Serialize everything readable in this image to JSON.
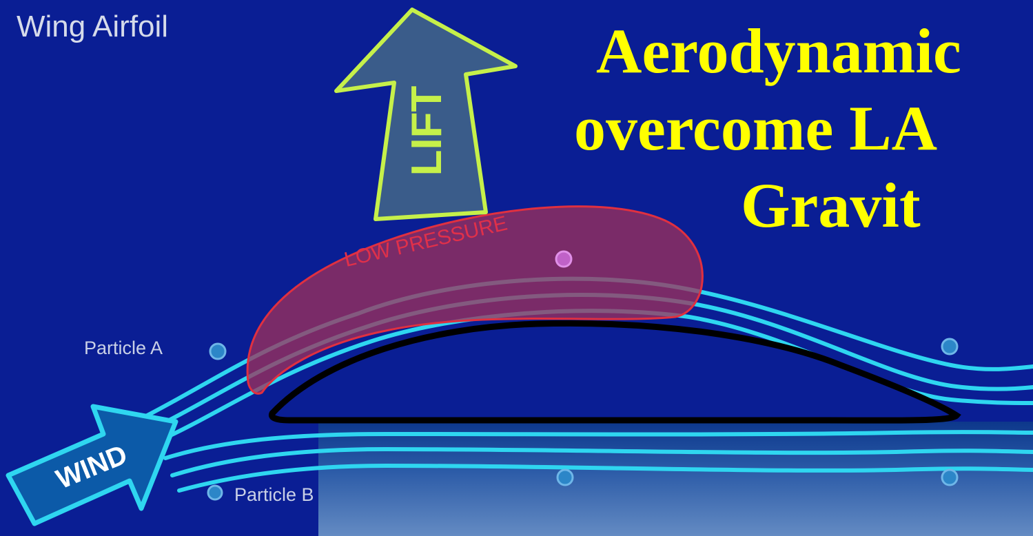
{
  "diagram": {
    "caption": "Wing Airfoil",
    "title_lines": [
      "Aerodynamic",
      "overcome LA",
      "Gravit"
    ],
    "labels": {
      "lift": "LIFT",
      "low_pressure": "LOW PRESSURE",
      "particle_a": "Particle A",
      "particle_b": "Particle B",
      "wind": "WIND"
    },
    "colors": {
      "background": "#0a1e94",
      "title": "#ffff00",
      "lift_arrow": "#c6f04a",
      "low_pressure": "#c2324a",
      "streamline": "#2fd6f0",
      "wind_arrow": "#1fa3e8",
      "airfoil_outline": "#000000"
    }
  }
}
